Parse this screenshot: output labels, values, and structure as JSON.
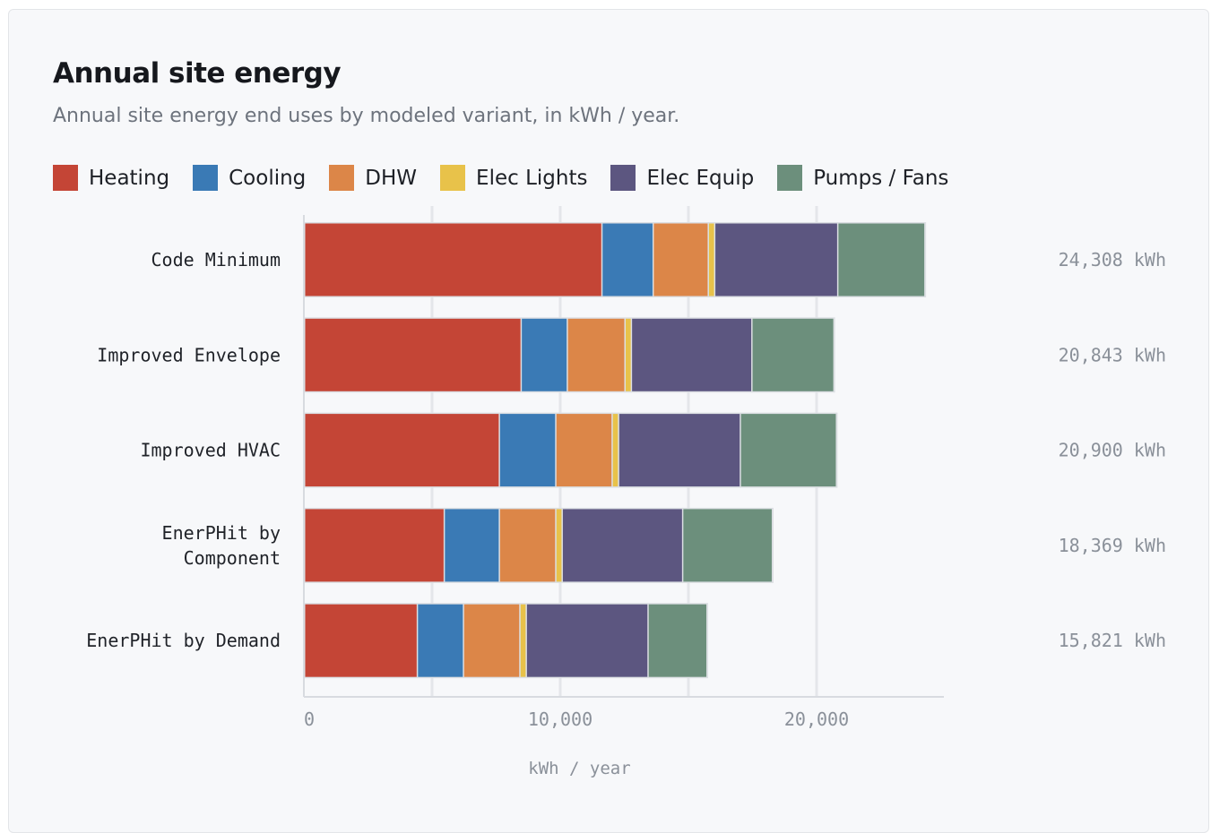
{
  "chart_data": {
    "type": "bar",
    "orientation": "horizontal",
    "stacked": true,
    "title": "Annual site energy",
    "subtitle": "Annual site energy end uses by modeled variant, in kWh / year.",
    "categories": [
      "Code Minimum",
      "Improved Envelope",
      "Improved HVAC",
      "EnerPHit by Component",
      "EnerPHit by Demand"
    ],
    "category_lines": [
      [
        "Code Minimum"
      ],
      [
        "Improved Envelope"
      ],
      [
        "Improved HVAC"
      ],
      [
        "EnerPHit by",
        "Component"
      ],
      [
        "EnerPHit by Demand"
      ]
    ],
    "series": [
      {
        "name": "Heating",
        "color": "#c44536",
        "values": [
          11600,
          8450,
          7600,
          5450,
          4400
        ]
      },
      {
        "name": "Cooling",
        "color": "#3a7ab5",
        "values": [
          2000,
          1800,
          2200,
          2150,
          1800
        ]
      },
      {
        "name": "DHW",
        "color": "#dc8648",
        "values": [
          2150,
          2250,
          2200,
          2200,
          2200
        ]
      },
      {
        "name": "Elec Lights",
        "color": "#e8c24a",
        "values": [
          250,
          250,
          250,
          250,
          250
        ]
      },
      {
        "name": "Elec Equip",
        "color": "#5c5680",
        "values": [
          4800,
          4700,
          4750,
          4700,
          4750
        ]
      },
      {
        "name": "Pumps / Fans",
        "color": "#6c8f7c",
        "values": [
          3400,
          3200,
          3750,
          3500,
          2300
        ]
      }
    ],
    "totals": [
      24308,
      20843,
      20900,
      18369,
      15821
    ],
    "total_labels": [
      "24,308 kWh",
      "20,843 kWh",
      "20,900 kWh",
      "18,369 kWh",
      "15,821 kWh"
    ],
    "xlim": [
      0,
      25000
    ],
    "x_ticks": [
      0,
      10000,
      20000
    ],
    "x_tick_labels": [
      "0",
      "10,000",
      "20,000"
    ],
    "gridlines": [
      0,
      5000,
      10000,
      15000,
      20000
    ],
    "xlabel": "kWh / year",
    "ylabel": "",
    "grid": true,
    "legend_position": "top-left"
  }
}
